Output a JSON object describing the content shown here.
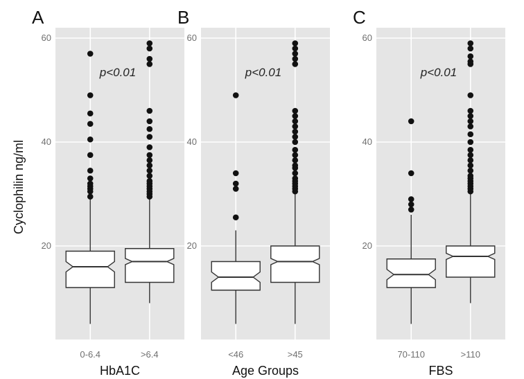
{
  "chart_data": {
    "type": "boxplot",
    "ylabel": "Cyclophilin ng/ml",
    "ylim": [
      2,
      62
    ],
    "yticks": [
      20,
      40,
      60
    ],
    "notched": true,
    "grid": true,
    "background_color": "#e5e5e5",
    "grid_color": "#ffffff",
    "box_fill": "#ffffff",
    "outlier_color": "#111111",
    "panels": [
      {
        "letter": "A",
        "xlabel": "HbA1C",
        "annotation": "p<0.01",
        "groups": [
          {
            "category": "0-6.4",
            "min": 5,
            "q1": 12,
            "median": 16,
            "q3": 19,
            "max": 29.5,
            "notch_low": 15,
            "notch_high": 17,
            "outliers": [
              57,
              49,
              45.5,
              43.5,
              40.5,
              37.5,
              34.5,
              33,
              32,
              31.5,
              31,
              30.5,
              29.5
            ]
          },
          {
            "category": ">6.4",
            "min": 9,
            "q1": 13,
            "median": 17,
            "q3": 19.5,
            "max": 29,
            "notch_low": 16.4,
            "notch_high": 17.6,
            "outliers": [
              59,
              58,
              56,
              55,
              46,
              44,
              42.5,
              41,
              39,
              37.5,
              36.5,
              35.5,
              34.5,
              33.5,
              32.5,
              32,
              31.5,
              31,
              30.5,
              30,
              29.5
            ]
          }
        ]
      },
      {
        "letter": "B",
        "xlabel": "Age Groups",
        "annotation": "p<0.01",
        "groups": [
          {
            "category": "<46",
            "min": 5,
            "q1": 11.5,
            "median": 14,
            "q3": 17,
            "max": 23,
            "notch_low": 13,
            "notch_high": 15,
            "outliers": [
              49,
              34,
              32,
              31,
              25.5
            ]
          },
          {
            "category": ">45",
            "min": 5,
            "q1": 13,
            "median": 17,
            "q3": 20,
            "max": 30,
            "notch_low": 16.4,
            "notch_high": 17.6,
            "outliers": [
              59,
              58,
              57,
              56,
              55,
              46,
              45,
              44,
              43,
              42,
              41,
              40,
              38.5,
              37.5,
              36.5,
              35.5,
              35,
              34,
              33,
              32.5,
              32,
              31.5,
              31,
              30.5
            ]
          }
        ]
      },
      {
        "letter": "C",
        "xlabel": "FBS",
        "annotation": "p<0.01",
        "groups": [
          {
            "category": "70-110",
            "min": 5,
            "q1": 12,
            "median": 14.5,
            "q3": 17.5,
            "max": 26,
            "notch_low": 13.5,
            "notch_high": 15.5,
            "outliers": [
              44,
              34,
              29,
              28,
              27
            ]
          },
          {
            "category": ">110",
            "min": 9,
            "q1": 14,
            "median": 18,
            "q3": 20,
            "max": 30,
            "notch_low": 17.4,
            "notch_high": 18.6,
            "outliers": [
              59,
              58,
              56.5,
              55.5,
              55,
              49,
              46,
              45,
              44,
              43,
              41.5,
              40,
              38.5,
              37.5,
              36.5,
              35.5,
              34.5,
              33.5,
              33,
              32.5,
              32,
              31.5,
              31,
              30.5
            ]
          }
        ]
      }
    ]
  }
}
